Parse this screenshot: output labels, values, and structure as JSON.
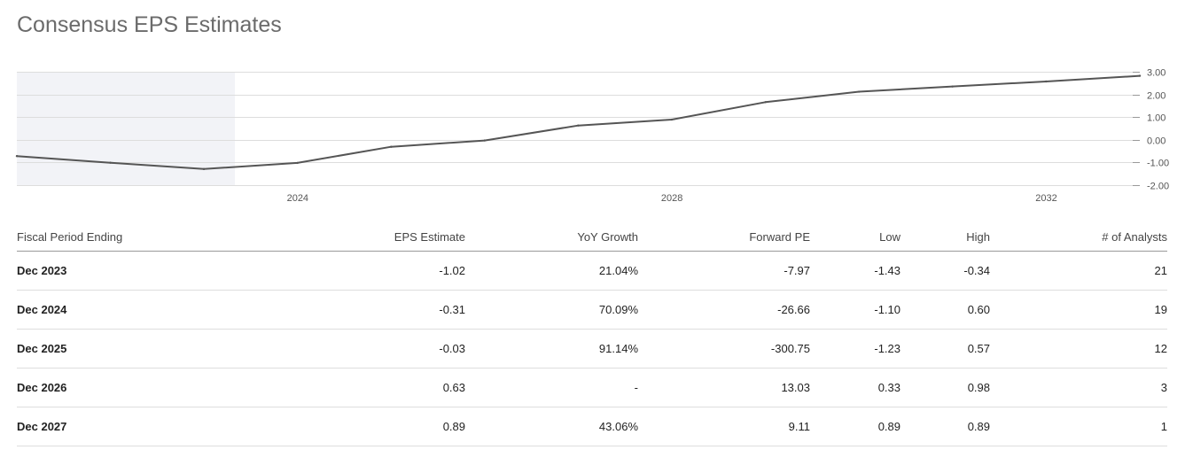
{
  "page": {
    "title": "Consensus EPS Estimates"
  },
  "colors": {
    "line": "#555555",
    "gridline": "#dddddd",
    "shaded_region": "#f2f3f7",
    "title": "#6b6b6b"
  },
  "chart_data": {
    "type": "line",
    "title": "",
    "xlabel": "",
    "ylabel": "",
    "x_axis": {
      "type": "date",
      "ticks": [
        "2024",
        "2028",
        "2032"
      ],
      "range": [
        "2020-12-31",
        "2032-12-31"
      ]
    },
    "y_axis": {
      "range": [
        -2,
        3
      ],
      "ticks": [
        "3.00",
        "2.00",
        "1.00",
        "0.00",
        "-1.00",
        "-2.00"
      ],
      "position": "right"
    },
    "grid": true,
    "legend": "none",
    "shaded_region": {
      "from": "2020-12-31",
      "to": "2023-05-01",
      "meaning": "historical"
    },
    "series": [
      {
        "points": [
          {
            "x": "2020-12-31",
            "y": -0.72
          },
          {
            "x": "2021-12-31",
            "y": -1.01
          },
          {
            "x": "2022-12-31",
            "y": -1.29
          },
          {
            "x": "2023-12-31",
            "y": -1.02
          },
          {
            "x": "2024-12-31",
            "y": -0.31
          },
          {
            "x": "2025-12-31",
            "y": -0.03
          },
          {
            "x": "2026-12-31",
            "y": 0.63
          },
          {
            "x": "2027-12-31",
            "y": 0.89
          },
          {
            "x": "2028-12-31",
            "y": 1.66
          },
          {
            "x": "2029-12-31",
            "y": 2.12
          },
          {
            "x": "2030-12-31",
            "y": 2.35
          },
          {
            "x": "2031-12-31",
            "y": 2.57
          },
          {
            "x": "2032-12-31",
            "y": 2.82
          }
        ]
      }
    ]
  },
  "table": {
    "headers": {
      "period": "Fiscal Period Ending",
      "eps": "EPS Estimate",
      "yoy": "YoY Growth",
      "pe": "Forward PE",
      "low": "Low",
      "high": "High",
      "analysts": "# of Analysts"
    },
    "rows": [
      {
        "period": "Dec 2023",
        "eps": "-1.02",
        "yoy": "21.04%",
        "pe": "-7.97",
        "low": "-1.43",
        "high": "-0.34",
        "analysts": "21"
      },
      {
        "period": "Dec 2024",
        "eps": "-0.31",
        "yoy": "70.09%",
        "pe": "-26.66",
        "low": "-1.10",
        "high": "0.60",
        "analysts": "19"
      },
      {
        "period": "Dec 2025",
        "eps": "-0.03",
        "yoy": "91.14%",
        "pe": "-300.75",
        "low": "-1.23",
        "high": "0.57",
        "analysts": "12"
      },
      {
        "period": "Dec 2026",
        "eps": "0.63",
        "yoy": "-",
        "pe": "13.03",
        "low": "0.33",
        "high": "0.98",
        "analysts": "3"
      },
      {
        "period": "Dec 2027",
        "eps": "0.89",
        "yoy": "43.06%",
        "pe": "9.11",
        "low": "0.89",
        "high": "0.89",
        "analysts": "1"
      }
    ]
  }
}
